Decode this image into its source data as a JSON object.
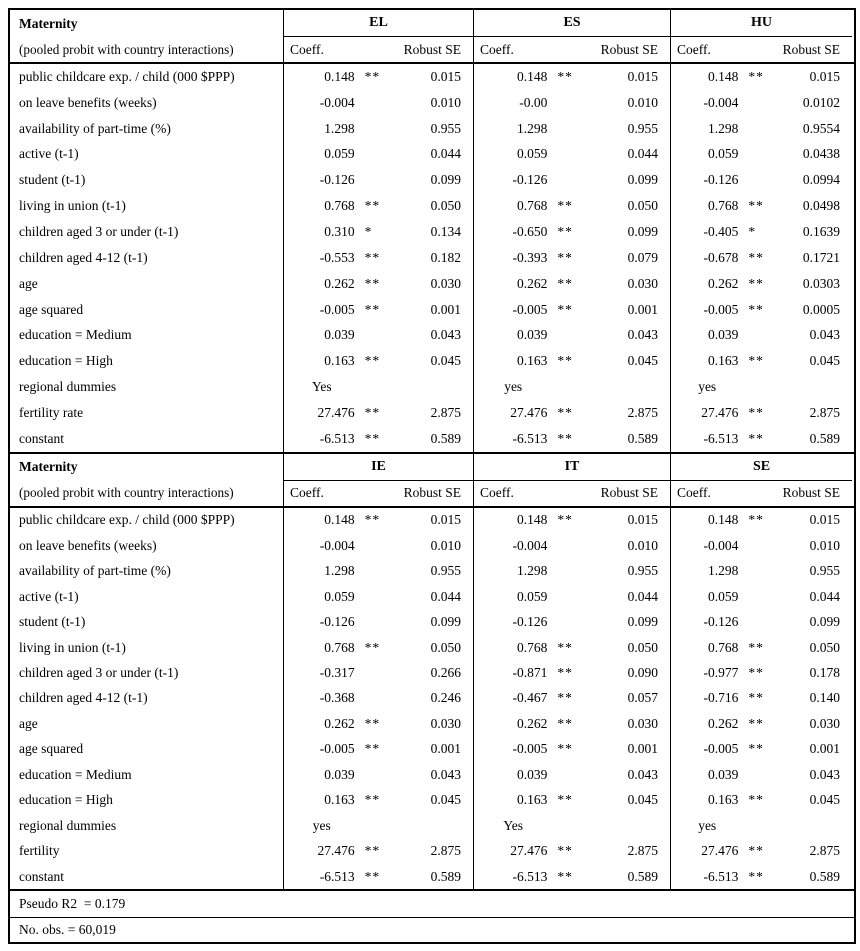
{
  "panels": [
    {
      "title": "Maternity",
      "subtitle": "(pooled probit with country interactions)",
      "coeff_header": "Coeff.",
      "se_header": "Robust SE",
      "countries": [
        "EL",
        "ES",
        "HU"
      ],
      "rows": [
        {
          "label": "public childcare exp. / child (000 $PPP)",
          "cells": [
            [
              "0.148",
              "**",
              "0.015"
            ],
            [
              "0.148",
              "**",
              "0.015"
            ],
            [
              "0.148",
              "**",
              "0.015"
            ]
          ]
        },
        {
          "label": "on leave benefits (weeks)",
          "cells": [
            [
              "-0.004",
              "",
              "0.010"
            ],
            [
              "-0.00",
              "",
              "0.010"
            ],
            [
              "-0.004",
              "",
              "0.0102"
            ]
          ]
        },
        {
          "label": "availability of part-time (%)",
          "cells": [
            [
              "1.298",
              "",
              "0.955"
            ],
            [
              "1.298",
              "",
              "0.955"
            ],
            [
              "1.298",
              "",
              "0.9554"
            ]
          ]
        },
        {
          "label": "active (t-1)",
          "cells": [
            [
              "0.059",
              "",
              "0.044"
            ],
            [
              "0.059",
              "",
              "0.044"
            ],
            [
              "0.059",
              "",
              "0.0438"
            ]
          ]
        },
        {
          "label": "student (t-1)",
          "cells": [
            [
              "-0.126",
              "",
              "0.099"
            ],
            [
              "-0.126",
              "",
              "0.099"
            ],
            [
              "-0.126",
              "",
              "0.0994"
            ]
          ]
        },
        {
          "label": "living in union (t-1)",
          "cells": [
            [
              "0.768",
              "**",
              "0.050"
            ],
            [
              "0.768",
              "**",
              "0.050"
            ],
            [
              "0.768",
              "**",
              "0.0498"
            ]
          ]
        },
        {
          "label": "children aged 3 or under (t-1)",
          "cells": [
            [
              "0.310",
              "*",
              "0.134"
            ],
            [
              "-0.650",
              "**",
              "0.099"
            ],
            [
              "-0.405",
              "*",
              "0.1639"
            ]
          ]
        },
        {
          "label": "children aged 4-12 (t-1)",
          "cells": [
            [
              "-0.553",
              "**",
              "0.182"
            ],
            [
              "-0.393",
              "**",
              "0.079"
            ],
            [
              "-0.678",
              "**",
              "0.1721"
            ]
          ]
        },
        {
          "label": "age",
          "cells": [
            [
              "0.262",
              "**",
              "0.030"
            ],
            [
              "0.262",
              "**",
              "0.030"
            ],
            [
              "0.262",
              "**",
              "0.0303"
            ]
          ]
        },
        {
          "label": "age squared",
          "cells": [
            [
              "-0.005",
              "**",
              "0.001"
            ],
            [
              "-0.005",
              "**",
              "0.001"
            ],
            [
              "-0.005",
              "**",
              "0.0005"
            ]
          ]
        },
        {
          "label": "education = Medium",
          "cells": [
            [
              "0.039",
              "",
              "0.043"
            ],
            [
              "0.039",
              "",
              "0.043"
            ],
            [
              "0.039",
              "",
              "0.043"
            ]
          ]
        },
        {
          "label": "education = High",
          "cells": [
            [
              "0.163",
              "**",
              "0.045"
            ],
            [
              "0.163",
              "**",
              "0.045"
            ],
            [
              "0.163",
              "**",
              "0.045"
            ]
          ]
        },
        {
          "label": "regional dummies",
          "cells": [
            [
              "Yes",
              "",
              ""
            ],
            [
              "yes",
              "",
              ""
            ],
            [
              "yes",
              "",
              ""
            ]
          ]
        },
        {
          "label": "fertility rate",
          "cells": [
            [
              "27.476",
              "**",
              "2.875"
            ],
            [
              "27.476",
              "**",
              "2.875"
            ],
            [
              "27.476",
              "**",
              "2.875"
            ]
          ]
        },
        {
          "label": "constant",
          "cells": [
            [
              "-6.513",
              "**",
              "0.589"
            ],
            [
              "-6.513",
              "**",
              "0.589"
            ],
            [
              "-6.513",
              "**",
              "0.589"
            ]
          ]
        }
      ]
    },
    {
      "title": "Maternity",
      "subtitle": "(pooled probit with country interactions)",
      "coeff_header": "Coeff.",
      "se_header": "Robust SE",
      "countries": [
        "IE",
        "IT",
        "SE"
      ],
      "rows": [
        {
          "label": "public childcare exp. / child (000 $PPP)",
          "cells": [
            [
              "0.148",
              "**",
              "0.015"
            ],
            [
              "0.148",
              "**",
              "0.015"
            ],
            [
              "0.148",
              "**",
              "0.015"
            ]
          ]
        },
        {
          "label": "on leave benefits (weeks)",
          "cells": [
            [
              "-0.004",
              "",
              "0.010"
            ],
            [
              "-0.004",
              "",
              "0.010"
            ],
            [
              "-0.004",
              "",
              "0.010"
            ]
          ]
        },
        {
          "label": "availability of part-time (%)",
          "cells": [
            [
              "1.298",
              "",
              "0.955"
            ],
            [
              "1.298",
              "",
              "0.955"
            ],
            [
              "1.298",
              "",
              "0.955"
            ]
          ]
        },
        {
          "label": "active (t-1)",
          "cells": [
            [
              "0.059",
              "",
              "0.044"
            ],
            [
              "0.059",
              "",
              "0.044"
            ],
            [
              "0.059",
              "",
              "0.044"
            ]
          ]
        },
        {
          "label": "student (t-1)",
          "cells": [
            [
              "-0.126",
              "",
              "0.099"
            ],
            [
              "-0.126",
              "",
              "0.099"
            ],
            [
              "-0.126",
              "",
              "0.099"
            ]
          ]
        },
        {
          "label": "living in union (t-1)",
          "cells": [
            [
              "0.768",
              "**",
              "0.050"
            ],
            [
              "0.768",
              "**",
              "0.050"
            ],
            [
              "0.768",
              "**",
              "0.050"
            ]
          ]
        },
        {
          "label": "children aged 3 or under (t-1)",
          "cells": [
            [
              "-0.317",
              "",
              "0.266"
            ],
            [
              "-0.871",
              "**",
              "0.090"
            ],
            [
              "-0.977",
              "**",
              "0.178"
            ]
          ]
        },
        {
          "label": "children aged 4-12 (t-1)",
          "cells": [
            [
              "-0.368",
              "",
              "0.246"
            ],
            [
              "-0.467",
              "**",
              "0.057"
            ],
            [
              "-0.716",
              "**",
              "0.140"
            ]
          ]
        },
        {
          "label": "age",
          "cells": [
            [
              "0.262",
              "**",
              "0.030"
            ],
            [
              "0.262",
              "**",
              "0.030"
            ],
            [
              "0.262",
              "**",
              "0.030"
            ]
          ]
        },
        {
          "label": "age squared",
          "cells": [
            [
              "-0.005",
              "**",
              "0.001"
            ],
            [
              "-0.005",
              "**",
              "0.001"
            ],
            [
              "-0.005",
              "**",
              "0.001"
            ]
          ]
        },
        {
          "label": "education = Medium",
          "cells": [
            [
              "0.039",
              "",
              "0.043"
            ],
            [
              "0.039",
              "",
              "0.043"
            ],
            [
              "0.039",
              "",
              "0.043"
            ]
          ]
        },
        {
          "label": "education = High",
          "cells": [
            [
              "0.163",
              "**",
              "0.045"
            ],
            [
              "0.163",
              "**",
              "0.045"
            ],
            [
              "0.163",
              "**",
              "0.045"
            ]
          ]
        },
        {
          "label": "regional dummies",
          "cells": [
            [
              "yes",
              "",
              ""
            ],
            [
              "Yes",
              "",
              ""
            ],
            [
              "yes",
              "",
              ""
            ]
          ]
        },
        {
          "label": "fertility",
          "cells": [
            [
              "27.476",
              "**",
              "2.875"
            ],
            [
              "27.476",
              "**",
              "2.875"
            ],
            [
              "27.476",
              "**",
              "2.875"
            ]
          ]
        },
        {
          "label": "constant",
          "cells": [
            [
              "-6.513",
              "**",
              "0.589"
            ],
            [
              "-6.513",
              "**",
              "0.589"
            ],
            [
              "-6.513",
              "**",
              "0.589"
            ]
          ]
        }
      ]
    }
  ],
  "footer": {
    "pseudo_r2": "Pseudo R2  = 0.179",
    "num_obs": "No. obs. = 60,019"
  }
}
